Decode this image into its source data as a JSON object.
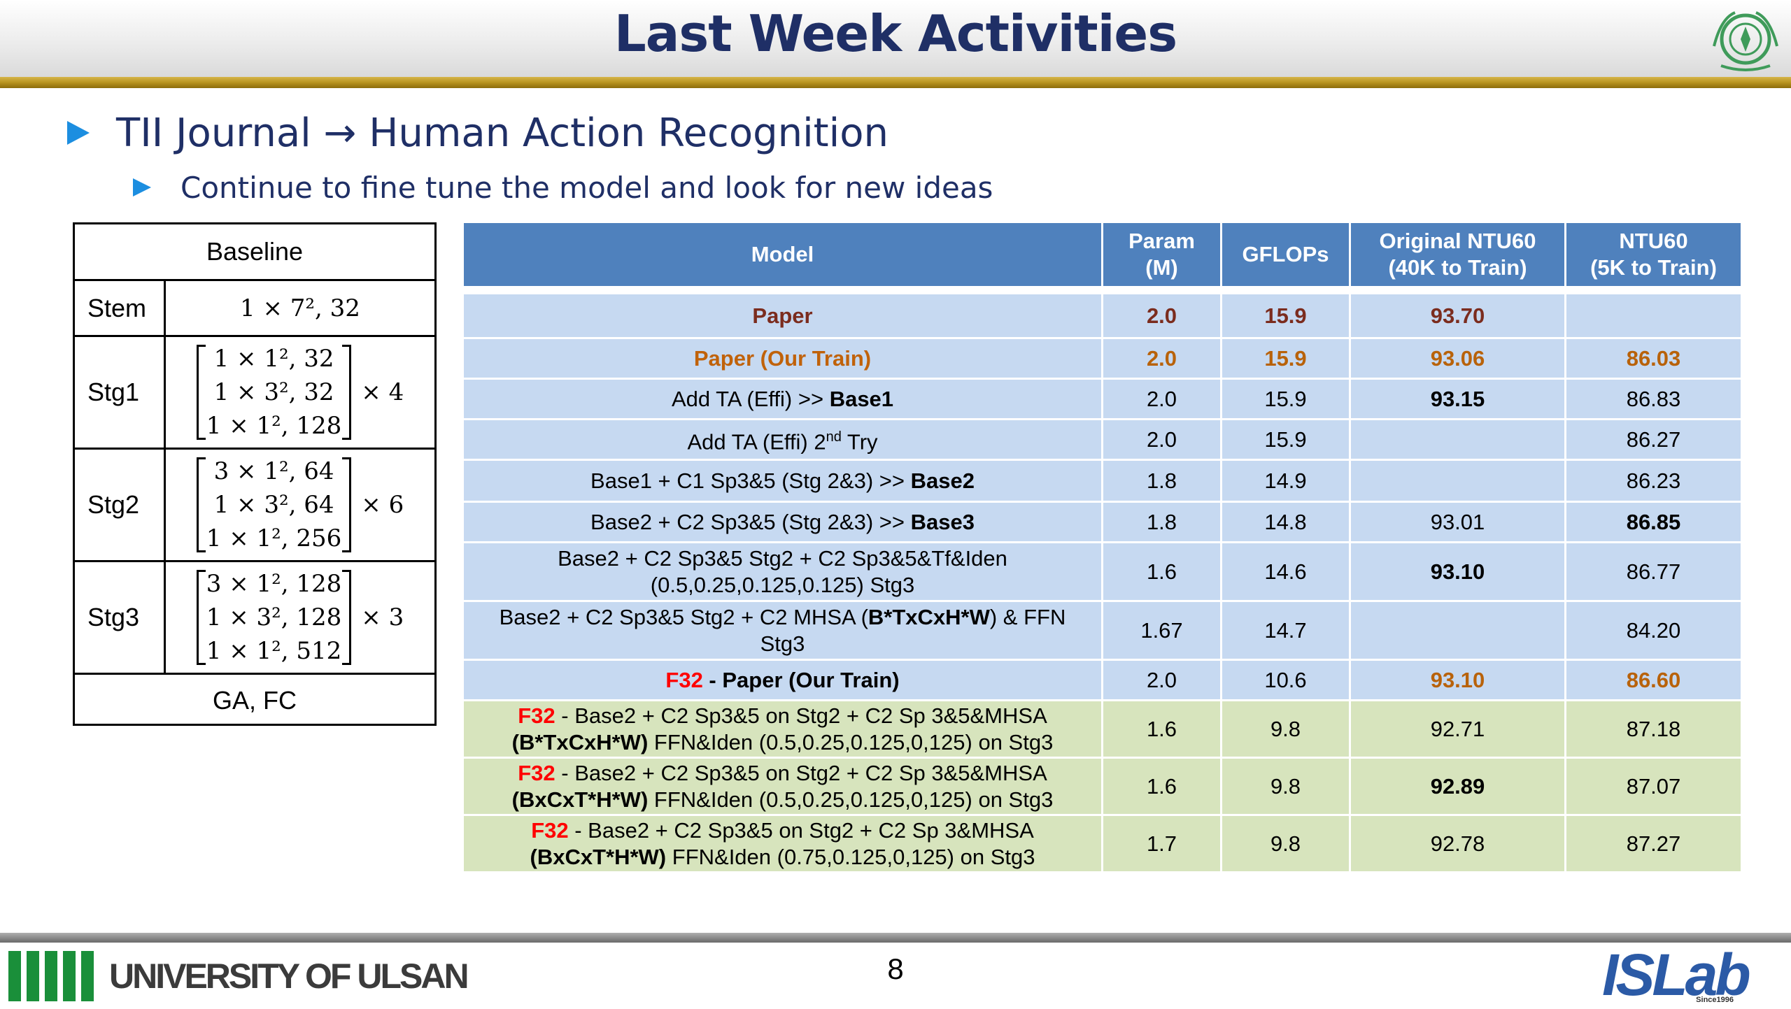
{
  "header": {
    "title": "Last Week Activities"
  },
  "bullets": {
    "level1": "TII Journal → Human Action Recognition",
    "level2": "Continue to fine tune the model and look for new ideas"
  },
  "baseline_table": {
    "title": "Baseline",
    "rows": [
      {
        "label": "Stem",
        "content": "1 × 7², 32"
      },
      {
        "label": "Stg1",
        "matrix": [
          "1 × 1², 32",
          "1 × 3², 32",
          "1 × 1², 128"
        ],
        "mult": "× 4"
      },
      {
        "label": "Stg2",
        "matrix": [
          "3 × 1², 64",
          "1 × 3², 64",
          "1 × 1², 256"
        ],
        "mult": "× 6"
      },
      {
        "label": "Stg3",
        "matrix": [
          "3 × 1², 128",
          "1 × 3², 128",
          "1 × 1², 512"
        ],
        "mult": "× 3"
      }
    ],
    "footer": "GA, FC"
  },
  "results_table": {
    "headers": {
      "model": "Model",
      "param_l1": "Param",
      "param_l2": "(M)",
      "gflops": "GFLOPs",
      "orig_l1": "Original NTU60",
      "orig_l2": "(40K to Train)",
      "ntu_l1": "NTU60",
      "ntu_l2": "(5K to Train)"
    },
    "rows": {
      "paper": {
        "model": "Paper",
        "param": "2.0",
        "gflops": "15.9",
        "orig": "93.70",
        "ntu": ""
      },
      "paper_our": {
        "model": "Paper (Our Train)",
        "param": "2.0",
        "gflops": "15.9",
        "orig": "93.06",
        "ntu": "86.03"
      },
      "add_ta": {
        "model_a": "Add TA (Effi) >> ",
        "model_b": "Base1",
        "param": "2.0",
        "gflops": "15.9",
        "orig": "93.15",
        "ntu": "86.83"
      },
      "add_ta_2": {
        "model_a": "Add TA (Effi) 2",
        "model_sup": "nd",
        "model_b": " Try",
        "param": "2.0",
        "gflops": "15.9",
        "orig": "",
        "ntu": "86.27"
      },
      "base2": {
        "model_a": "Base1 + C1 Sp3&5 (Stg 2&3) >> ",
        "model_b": "Base2",
        "param": "1.8",
        "gflops": "14.9",
        "orig": "",
        "ntu": "86.23"
      },
      "base3": {
        "model_a": "Base2 + C2 Sp3&5 (Stg 2&3) >> ",
        "model_b": "Base3",
        "param": "1.8",
        "gflops": "14.8",
        "orig": "93.01",
        "ntu": "86.85"
      },
      "tf_iden": {
        "model_l1": "Base2 + C2 Sp3&5 Stg2 + C2 Sp3&5&Tf&Iden",
        "model_l2": "(0.5,0.25,0.125,0.125) Stg3",
        "param": "1.6",
        "gflops": "14.6",
        "orig": "93.10",
        "ntu": "86.77"
      },
      "mhsa": {
        "model_a": "Base2 + C2 Sp3&5 Stg2 + C2 MHSA (",
        "model_b": "B*TxCxH*W",
        "model_c": ") & FFN",
        "model_l2": "Stg3",
        "param": "1.67",
        "gflops": "14.7",
        "orig": "",
        "ntu": "84.20"
      },
      "f32_paper": {
        "prefix": "F32",
        "model": " - Paper (Our Train)",
        "param": "2.0",
        "gflops": "10.6",
        "orig": "93.10",
        "ntu": "86.60"
      },
      "f32_a": {
        "prefix": "F32",
        "l1": " - Base2 + C2 Sp3&5 on Stg2 + C2 Sp 3&5&MHSA",
        "l2_b": "(B*TxCxH*W)",
        "l2_rest": " FFN&Iden (0.5,0.25,0.125,0,125) on Stg3",
        "param": "1.6",
        "gflops": "9.8",
        "orig": "92.71",
        "ntu": "87.18"
      },
      "f32_b": {
        "prefix": "F32",
        "l1": " - Base2 + C2 Sp3&5 on Stg2 + C2 Sp 3&5&MHSA",
        "l2_b": "(BxCxT*H*W)",
        "l2_rest": " FFN&Iden (0.5,0.25,0.125,0,125) on Stg3",
        "param": "1.6",
        "gflops": "9.8",
        "orig": "92.89",
        "ntu": "87.07"
      },
      "f32_c": {
        "prefix": "F32",
        "l1": " - Base2 + C2 Sp3&5 on Stg2 + C2 Sp 3&MHSA",
        "l2_b": "(BxCxT*H*W)",
        "l2_rest": " FFN&Iden (0.75,0.125,0,125) on Stg3",
        "param": "1.7",
        "gflops": "9.8",
        "orig": "92.78",
        "ntu": "87.27"
      }
    }
  },
  "footer": {
    "university": "UNIVERSITY OF ULSAN",
    "page_number": "8",
    "lab_logo": "ISLab",
    "lab_since": "Since1996"
  },
  "colors": {
    "title": "#1f2f66",
    "accent_gold": "#b8941f",
    "bullet": "#1c8ee0",
    "table_header": "#4f81bd",
    "row_blue": "#c6d9f1",
    "row_green": "#d7e4bd",
    "highlight_red": "#ff0000"
  }
}
